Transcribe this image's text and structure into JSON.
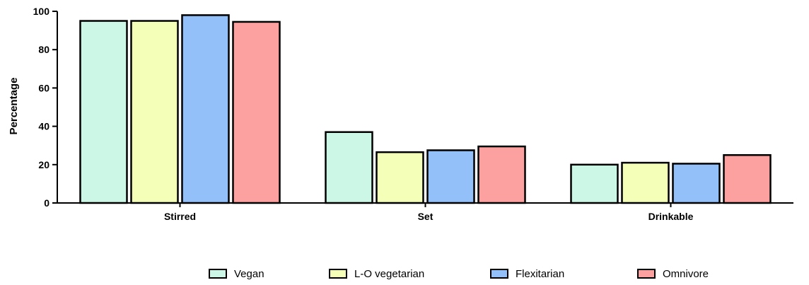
{
  "chart_data": {
    "type": "bar",
    "categories": [
      "Stirred",
      "Set",
      "Drinkable"
    ],
    "series": [
      {
        "name": "Vegan",
        "color": "#ccf7e6",
        "values": [
          95,
          37,
          20
        ]
      },
      {
        "name": "L-O vegetarian",
        "color": "#f4ffb8",
        "values": [
          95,
          26.5,
          21
        ]
      },
      {
        "name": "Flexitarian",
        "color": "#93c0f8",
        "values": [
          98,
          27.5,
          20.5
        ]
      },
      {
        "name": "Omnivore",
        "color": "#fca0a0",
        "values": [
          94.5,
          29.5,
          25
        ]
      }
    ],
    "ylabel": "Percentage",
    "xlabel": "",
    "ylim": [
      0,
      100
    ],
    "yticks": [
      0,
      20,
      40,
      60,
      80,
      100
    ],
    "grid": false,
    "legend_position": "bottom"
  }
}
